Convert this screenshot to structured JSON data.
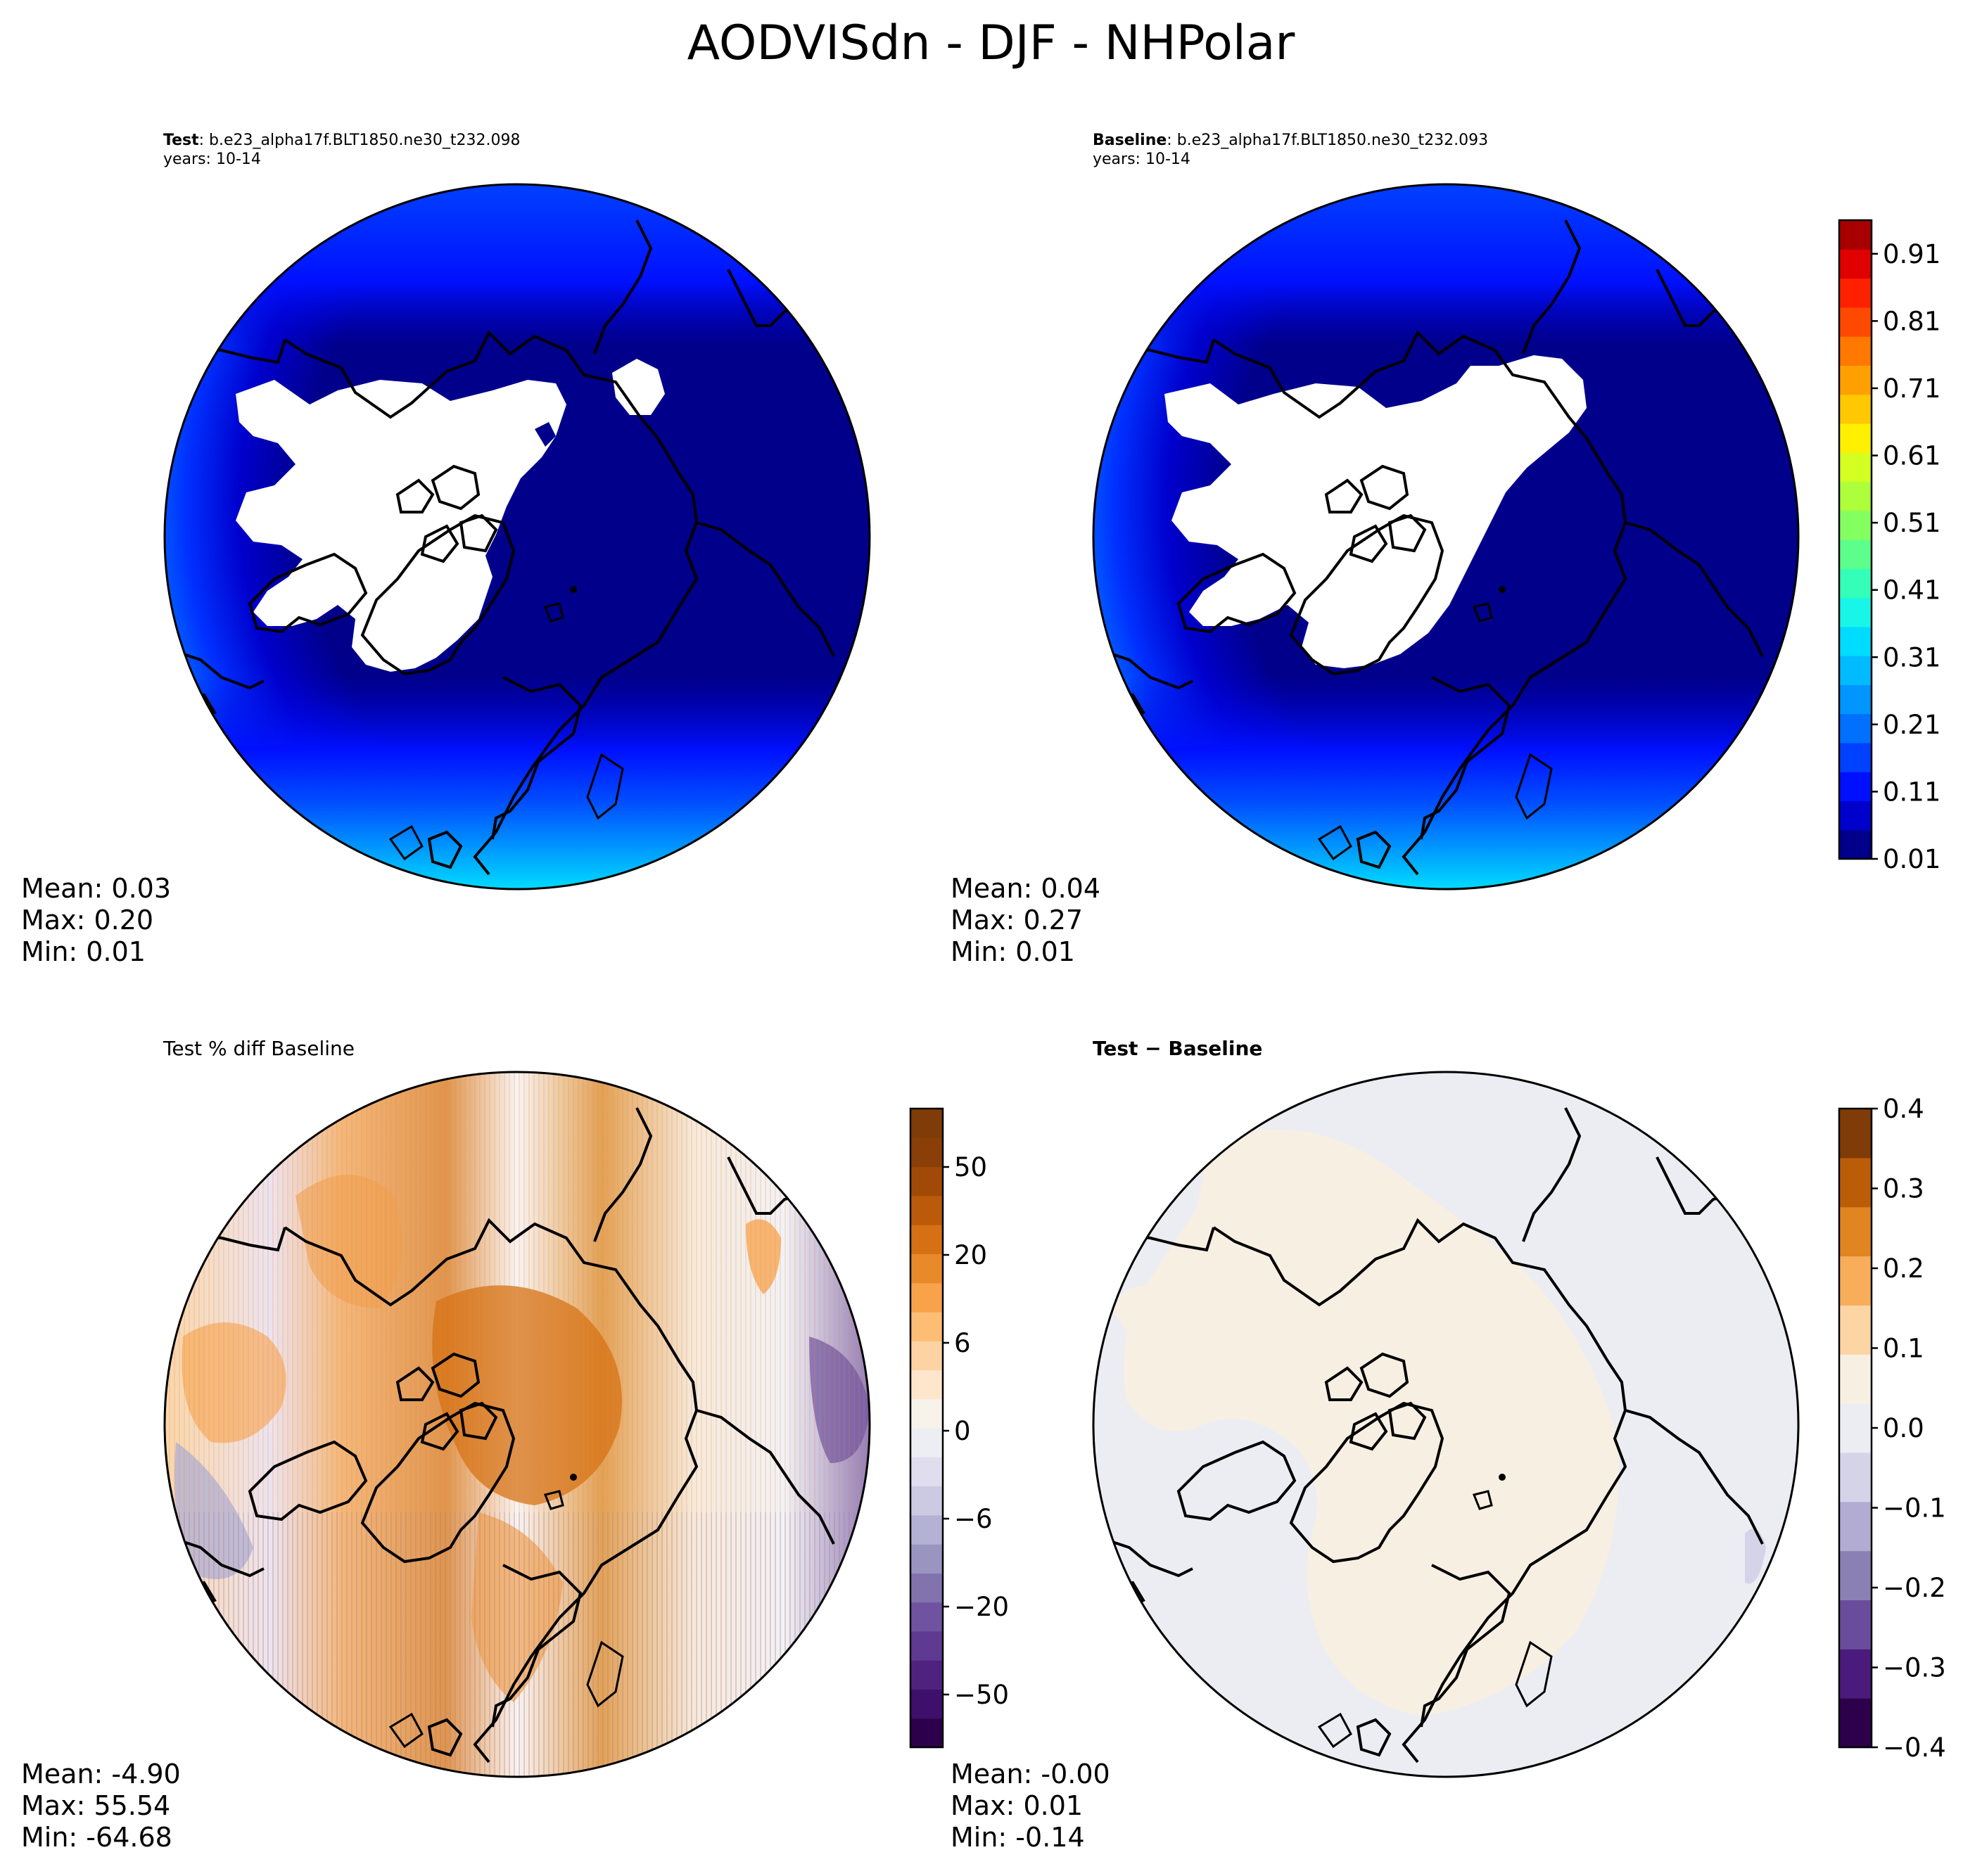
{
  "figure": {
    "title": "AODVISdn - DJF - NHPolar"
  },
  "panels": {
    "test": {
      "label_bold": "Test",
      "label_rest": ": b.e23_alpha17f.BLT1850.ne30_t232.098",
      "years": "years: 10-14",
      "stats": {
        "mean": "Mean:  0.03",
        "max": "Max:  0.20",
        "min": "Min:  0.01"
      }
    },
    "baseline": {
      "label_bold": "Baseline",
      "label_rest": ": b.e23_alpha17f.BLT1850.ne30_t232.093",
      "years": "years: 10-14",
      "stats": {
        "mean": "Mean:  0.04",
        "max": "Max:  0.27",
        "min": "Min:  0.01"
      }
    },
    "pctdiff": {
      "title": "Test % diff Baseline",
      "stats": {
        "mean": "Mean: -4.90",
        "max": "Max: 55.54",
        "min": "Min: -64.68"
      }
    },
    "diff": {
      "title": "Test − Baseline",
      "stats": {
        "mean": "Mean: -0.00",
        "max": "Max:  0.01",
        "min": "Min: -0.14"
      }
    }
  },
  "chart_data": [
    {
      "type": "heatmap",
      "panel": "test",
      "projection": "north-polar-stereographic",
      "colorbar": "shared-top",
      "stats": {
        "mean": 0.03,
        "max": 0.2,
        "min": 0.01
      }
    },
    {
      "type": "heatmap",
      "panel": "baseline",
      "projection": "north-polar-stereographic",
      "colorbar": {
        "ticks": [
          "0.01",
          "0.11",
          "0.21",
          "0.31",
          "0.41",
          "0.51",
          "0.61",
          "0.71",
          "0.81",
          "0.91"
        ],
        "range": [
          0.01,
          0.96
        ],
        "colors": [
          "#00008b",
          "#0000cd",
          "#0010ff",
          "#0040ff",
          "#0070ff",
          "#0095ff",
          "#00bbff",
          "#00dcff",
          "#18f6e8",
          "#34ffb8",
          "#5cff8c",
          "#84ff60",
          "#acff3a",
          "#d4ff20",
          "#fff000",
          "#ffc800",
          "#ffa000",
          "#ff7800",
          "#ff4800",
          "#ff2000",
          "#e00000",
          "#a80000"
        ]
      },
      "stats": {
        "mean": 0.04,
        "max": 0.27,
        "min": 0.01
      }
    },
    {
      "type": "heatmap",
      "panel": "pctdiff",
      "projection": "north-polar-stereographic",
      "colorbar": {
        "ticks": [
          "50",
          "20",
          "6",
          "0",
          "−6",
          "−20",
          "−50"
        ],
        "colors": [
          "#2d004b",
          "#3f0f6c",
          "#4f2280",
          "#5e3a92",
          "#6f52a0",
          "#8273ae",
          "#9a95c0",
          "#b3b1d4",
          "#ccc9e2",
          "#dfddee",
          "#ededf4",
          "#f7f2ea",
          "#fde6cc",
          "#fdd3a4",
          "#fdbd74",
          "#f8a24a",
          "#e8892a",
          "#d57114",
          "#bb5a0a",
          "#a14a08",
          "#8a3e08",
          "#7f3b08"
        ]
      },
      "stats": {
        "mean": -4.9,
        "max": 55.54,
        "min": -64.68
      }
    },
    {
      "type": "heatmap",
      "panel": "diff",
      "projection": "north-polar-stereographic",
      "colorbar": {
        "ticks": [
          "0.4",
          "0.3",
          "0.2",
          "0.1",
          "0.0",
          "−0.1",
          "−0.2",
          "−0.3",
          "−0.4"
        ],
        "range": [
          -0.4,
          0.4
        ],
        "colors": [
          "#2d004b",
          "#4a1a7c",
          "#6a4c9c",
          "#8a80b4",
          "#b2abd2",
          "#d5d3e8",
          "#ececf3",
          "#f7efe2",
          "#fdd4a4",
          "#f8ad5a",
          "#e08520",
          "#bb5d08",
          "#7f3b08"
        ]
      },
      "stats": {
        "mean": -0.0,
        "max": 0.01,
        "min": -0.14
      }
    }
  ],
  "colors": {
    "land_outline": "#000000",
    "missing": "#ffffff"
  }
}
